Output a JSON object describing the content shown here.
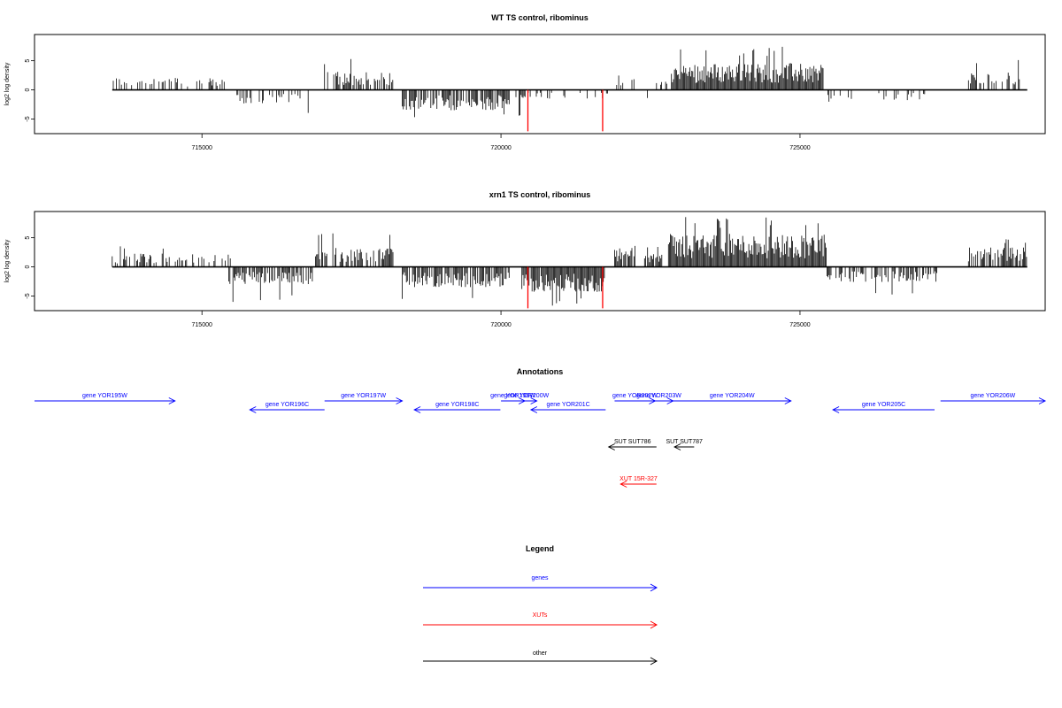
{
  "chart_data": [
    {
      "type": "bar",
      "title": "WT TS control, ribominus",
      "xlabel": "",
      "ylabel": "log2 log density",
      "xlim": [
        712200,
        729100
      ],
      "ylim": [
        -7.5,
        9.5
      ],
      "x_ticks": [
        715000,
        720000,
        725000
      ],
      "y_ticks": [
        -5,
        0,
        5
      ],
      "highlight_color": "#ff0000",
      "bar_color": "#000000",
      "regions": [
        {
          "start": 713500,
          "end": 715400,
          "sign": 1,
          "mean": 1.6,
          "max": 4.3,
          "density": 0.35
        },
        {
          "start": 715550,
          "end": 716800,
          "sign": -1,
          "mean": 1.8,
          "max": 5.0,
          "density": 0.45
        },
        {
          "start": 717050,
          "end": 718200,
          "sign": 1,
          "mean": 2.3,
          "max": 5.7,
          "density": 0.6
        },
        {
          "start": 718350,
          "end": 720150,
          "sign": -1,
          "mean": 2.6,
          "max": 5.2,
          "density": 0.75
        },
        {
          "start": 720250,
          "end": 721850,
          "sign": -1,
          "mean": 1.3,
          "max": 4.5,
          "density": 0.18
        },
        {
          "start": 721900,
          "end": 722250,
          "sign": 1,
          "mean": 2.0,
          "max": 3.9,
          "density": 0.5
        },
        {
          "start": 722450,
          "end": 722550,
          "sign": -1,
          "mean": 1.5,
          "max": 2.0,
          "density": 0.3
        },
        {
          "start": 722600,
          "end": 722800,
          "sign": 1,
          "mean": 1.2,
          "max": 1.8,
          "density": 0.4
        },
        {
          "start": 722850,
          "end": 725400,
          "sign": 1,
          "mean": 3.4,
          "max": 7.7,
          "density": 1.0
        },
        {
          "start": 725450,
          "end": 727100,
          "sign": -1,
          "mean": 1.5,
          "max": 4.7,
          "density": 0.25
        },
        {
          "start": 727800,
          "end": 728700,
          "sign": 1,
          "mean": 2.3,
          "max": 5.3,
          "density": 0.55
        }
      ],
      "highlights": [
        {
          "x": 720450,
          "value": -7.1
        },
        {
          "x": 721700,
          "value": -7.1
        }
      ]
    },
    {
      "type": "bar",
      "title": "xrn1 TS control, ribominus",
      "xlabel": "",
      "ylabel": "log2 log density",
      "xlim": [
        712200,
        729100
      ],
      "ylim": [
        -7.5,
        9.5
      ],
      "x_ticks": [
        715000,
        720000,
        725000
      ],
      "y_ticks": [
        -5,
        0,
        5
      ],
      "highlight_color": "#ff0000",
      "bar_color": "#000000",
      "regions": [
        {
          "start": 713500,
          "end": 715500,
          "sign": 1,
          "mean": 1.7,
          "max": 3.6,
          "density": 0.4
        },
        {
          "start": 715450,
          "end": 716850,
          "sign": -1,
          "mean": 2.2,
          "max": 6.2,
          "density": 0.65
        },
        {
          "start": 716900,
          "end": 718250,
          "sign": 1,
          "mean": 2.5,
          "max": 6.5,
          "density": 0.65
        },
        {
          "start": 718350,
          "end": 720150,
          "sign": -1,
          "mean": 2.6,
          "max": 5.5,
          "density": 0.85
        },
        {
          "start": 720350,
          "end": 721750,
          "sign": -1,
          "mean": 3.2,
          "max": 6.7,
          "density": 0.95
        },
        {
          "start": 721900,
          "end": 722250,
          "sign": 1,
          "mean": 2.4,
          "max": 4.2,
          "density": 0.7
        },
        {
          "start": 722400,
          "end": 722700,
          "sign": 1,
          "mean": 2.0,
          "max": 3.9,
          "density": 0.6
        },
        {
          "start": 722800,
          "end": 725450,
          "sign": 1,
          "mean": 4.2,
          "max": 8.6,
          "density": 1.0
        },
        {
          "start": 725450,
          "end": 727300,
          "sign": -1,
          "mean": 1.9,
          "max": 5.1,
          "density": 0.55
        },
        {
          "start": 727800,
          "end": 728800,
          "sign": 1,
          "mean": 2.5,
          "max": 5.3,
          "density": 0.65
        }
      ],
      "highlights": [
        {
          "x": 720450,
          "value": -7.1
        },
        {
          "x": 721700,
          "value": -7.1
        }
      ]
    }
  ],
  "annotations": {
    "title": "Annotations",
    "features": [
      {
        "label": "gene YOR195W",
        "start": 712200,
        "end": 714550,
        "strand": "+",
        "row": 0,
        "kind": "gene"
      },
      {
        "label": "gene YOR196C",
        "start": 715800,
        "end": 717050,
        "strand": "-",
        "row": 1,
        "kind": "gene"
      },
      {
        "label": "gene YOR197W",
        "start": 717050,
        "end": 718350,
        "strand": "+",
        "row": 0,
        "kind": "gene"
      },
      {
        "label": "gene YOR198C",
        "start": 718550,
        "end": 719990,
        "strand": "-",
        "row": 1,
        "kind": "gene"
      },
      {
        "label": "gene YOR199W",
        "start": 720000,
        "end": 720400,
        "strand": "+",
        "row": 0,
        "kind": "gene"
      },
      {
        "label": "gene YOR200W",
        "start": 720250,
        "end": 720600,
        "strand": "+",
        "row": 0,
        "kind": "gene"
      },
      {
        "label": "gene YOR201C",
        "start": 720500,
        "end": 721750,
        "strand": "-",
        "row": 1,
        "kind": "gene"
      },
      {
        "label": "gene YOR202W",
        "start": 721900,
        "end": 722580,
        "strand": "+",
        "row": 0,
        "kind": "gene"
      },
      {
        "label": "gene YOR203W",
        "start": 722400,
        "end": 722880,
        "strand": "+",
        "row": 0,
        "kind": "gene"
      },
      {
        "label": "gene YOR204W",
        "start": 722880,
        "end": 724850,
        "strand": "+",
        "row": 0,
        "kind": "gene"
      },
      {
        "label": "gene YOR205C",
        "start": 725550,
        "end": 727250,
        "strand": "-",
        "row": 1,
        "kind": "gene"
      },
      {
        "label": "gene YOR206W",
        "start": 727350,
        "end": 729100,
        "strand": "+",
        "row": 0,
        "kind": "gene"
      },
      {
        "label": "SUT SUT786",
        "start": 721800,
        "end": 722600,
        "strand": "-",
        "row": 2,
        "kind": "other"
      },
      {
        "label": "SUT SUT787",
        "start": 722900,
        "end": 723230,
        "strand": "-",
        "row": 2,
        "kind": "other"
      },
      {
        "label": "XUT 15R-327",
        "start": 722000,
        "end": 722600,
        "strand": "-",
        "row": 3,
        "kind": "xut"
      }
    ]
  },
  "legend": {
    "title": "Legend",
    "items": [
      {
        "label": "genes",
        "color": "#0000ff"
      },
      {
        "label": "XUTs",
        "color": "#ff0000"
      },
      {
        "label": "other",
        "color": "#000000"
      }
    ]
  }
}
